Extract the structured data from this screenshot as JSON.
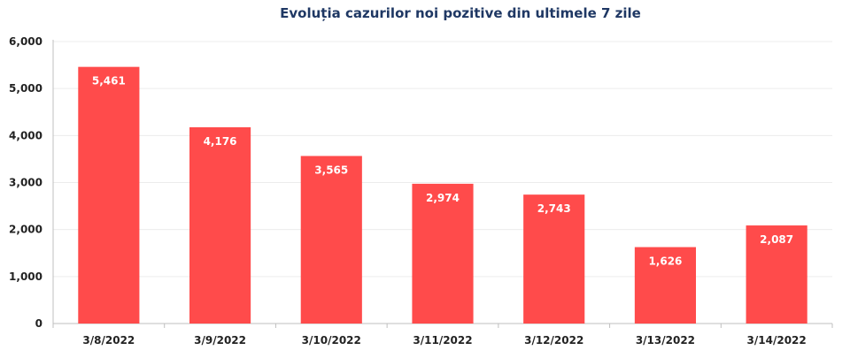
{
  "chart_data": {
    "type": "bar",
    "title": "Evoluția cazurilor noi pozitive din ultimele 7 zile",
    "categories": [
      "3/8/2022",
      "3/9/2022",
      "3/10/2022",
      "3/11/2022",
      "3/12/2022",
      "3/13/2022",
      "3/14/2022"
    ],
    "values": [
      5461,
      4176,
      3565,
      2974,
      2743,
      1626,
      2087
    ],
    "value_labels": [
      "5,461",
      "4,176",
      "3,565",
      "2,974",
      "2,743",
      "1,626",
      "2,087"
    ],
    "y_ticks": [
      0,
      1000,
      2000,
      3000,
      4000,
      5000,
      6000
    ],
    "y_tick_labels": [
      "0",
      "1,000",
      "2,000",
      "3,000",
      "4,000",
      "5,000",
      "6,000"
    ],
    "ylim": [
      0,
      6000
    ],
    "xlabel": "",
    "ylabel": "",
    "grid": true,
    "legend": "none",
    "bar_color": "#ff4b4b",
    "grid_color": "#ececec",
    "title_color": "#1f3864"
  }
}
